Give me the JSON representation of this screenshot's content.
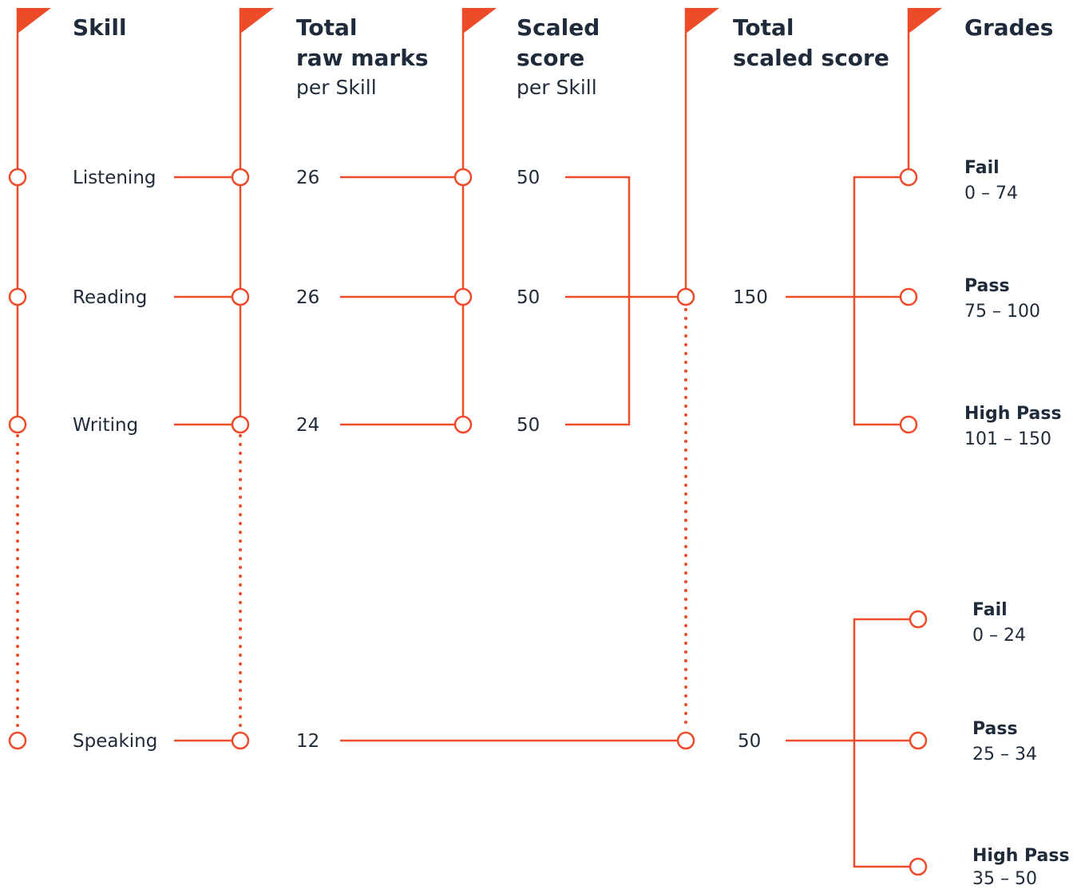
{
  "colors": {
    "accent": "#ee4b2b",
    "text": "#1f2b3a",
    "background": "#ffffff"
  },
  "icons": {
    "column_marker": "flag-icon",
    "node": "circle-node-icon"
  },
  "headers": {
    "skill": "Skill",
    "raw_line1": "Total",
    "raw_line2": "raw marks",
    "raw_sub": "per Skill",
    "scaled_line1": "Scaled",
    "scaled_line2": "score",
    "scaled_sub": "per Skill",
    "total_line1": "Total",
    "total_line2": "scaled score",
    "grades": "Grades"
  },
  "skills": [
    "Listening",
    "Reading",
    "Writing",
    "Speaking"
  ],
  "raw_marks": [
    "26",
    "26",
    "24",
    "12"
  ],
  "scaled_scores": [
    "50",
    "50",
    "50"
  ],
  "total_scaled": {
    "main": "150",
    "speaking": "50"
  },
  "grades_main": [
    {
      "label": "Fail",
      "range": "0 – 74"
    },
    {
      "label": "Pass",
      "range": "75 – 100"
    },
    {
      "label": "High Pass",
      "range": "101 – 150"
    }
  ],
  "grades_speaking": [
    {
      "label": "Fail",
      "range": "0 – 24"
    },
    {
      "label": "Pass",
      "range": "25 – 34"
    },
    {
      "label": "High Pass",
      "range": "35 – 50"
    }
  ]
}
